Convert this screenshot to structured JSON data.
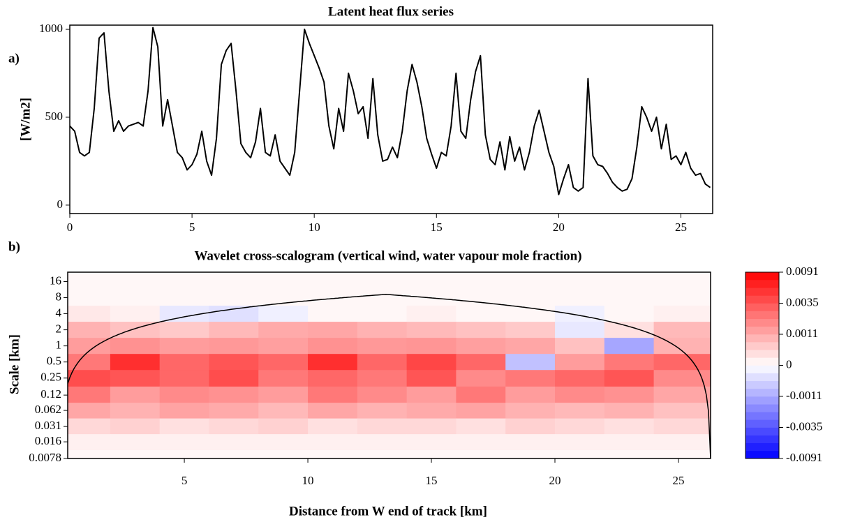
{
  "chart_data": [
    {
      "type": "line",
      "title": "Latent heat flux series",
      "panel_label": "a)",
      "ylabel": "[W/m2]",
      "color": "#000000",
      "xlim": [
        0,
        26.3
      ],
      "ylim": [
        -48,
        1024
      ],
      "xticks": [
        0,
        5,
        10,
        15,
        20,
        25
      ],
      "yticks": [
        0,
        500,
        1000
      ],
      "grid": false,
      "x": [
        0,
        0.2,
        0.4,
        0.6,
        0.8,
        1,
        1.2,
        1.4,
        1.6,
        1.8,
        2,
        2.2,
        2.4,
        2.6,
        2.8,
        3,
        3.2,
        3.4,
        3.6,
        3.8,
        4,
        4.2,
        4.4,
        4.6,
        4.8,
        5,
        5.2,
        5.4,
        5.6,
        5.8,
        6,
        6.2,
        6.4,
        6.6,
        6.8,
        7,
        7.2,
        7.4,
        7.6,
        7.8,
        8,
        8.2,
        8.4,
        8.6,
        8.8,
        9,
        9.2,
        9.4,
        9.6,
        9.8,
        10,
        10.2,
        10.4,
        10.6,
        10.8,
        11,
        11.2,
        11.4,
        11.6,
        11.8,
        12,
        12.2,
        12.4,
        12.6,
        12.8,
        13,
        13.2,
        13.4,
        13.6,
        13.8,
        14,
        14.2,
        14.4,
        14.6,
        14.8,
        15,
        15.2,
        15.4,
        15.6,
        15.8,
        16,
        16.2,
        16.4,
        16.6,
        16.8,
        17,
        17.2,
        17.4,
        17.6,
        17.8,
        18,
        18.2,
        18.4,
        18.6,
        18.8,
        19,
        19.2,
        19.4,
        19.6,
        19.8,
        20,
        20.2,
        20.4,
        20.6,
        20.8,
        21,
        21.2,
        21.4,
        21.6,
        21.8,
        22,
        22.2,
        22.4,
        22.6,
        22.8,
        23,
        23.2,
        23.4,
        23.6,
        23.8,
        24,
        24.2,
        24.4,
        24.6,
        24.8,
        25,
        25.2,
        25.4,
        25.6,
        25.8,
        26,
        26.2
      ],
      "values": [
        450,
        420,
        300,
        280,
        300,
        550,
        950,
        980,
        650,
        420,
        480,
        420,
        450,
        460,
        470,
        450,
        650,
        1010,
        900,
        450,
        600,
        450,
        300,
        270,
        200,
        230,
        290,
        420,
        250,
        170,
        380,
        800,
        880,
        920,
        650,
        350,
        300,
        270,
        360,
        550,
        300,
        280,
        400,
        250,
        210,
        170,
        300,
        650,
        1000,
        920,
        850,
        780,
        700,
        450,
        320,
        550,
        420,
        750,
        650,
        520,
        560,
        380,
        720,
        400,
        250,
        260,
        330,
        270,
        420,
        650,
        800,
        700,
        560,
        380,
        290,
        210,
        300,
        280,
        450,
        750,
        420,
        380,
        600,
        760,
        850,
        400,
        260,
        230,
        360,
        200,
        390,
        250,
        330,
        200,
        300,
        450,
        540,
        420,
        300,
        220,
        60,
        150,
        230,
        100,
        80,
        100,
        720,
        280,
        230,
        220,
        180,
        130,
        100,
        80,
        90,
        150,
        330,
        560,
        500,
        420,
        500,
        320,
        460,
        260,
        280,
        230,
        300,
        210,
        170,
        180,
        120,
        100
      ]
    },
    {
      "type": "heatmap",
      "title": "Wavelet cross-scalogram (vertical wind, water vapour mole fraction)",
      "panel_label": "b)",
      "ylabel": "Scale [km]",
      "xlabel": "Distance from W end of track [km]",
      "ylog": true,
      "xlim": [
        0.28,
        26.3
      ],
      "ylim": [
        0.0078,
        24
      ],
      "xticks": [
        5,
        10,
        15,
        20,
        25
      ],
      "yticks": [
        16,
        8,
        4,
        2,
        1,
        0.5,
        0.25,
        0.12,
        0.062,
        0.031,
        0.016,
        0.0078
      ],
      "colormap": [
        "#0000ff",
        "#ffffff",
        "#ff0000"
      ],
      "colorbar_ticks": [
        0.0091,
        0.0035,
        0.0011,
        0,
        -0.0011,
        -0.0035,
        -0.0091
      ],
      "x": [
        1,
        3,
        5,
        7,
        9,
        11,
        13,
        15,
        17,
        19,
        21,
        23,
        25
      ],
      "y": [
        16,
        8,
        4,
        2,
        1,
        0.5,
        0.25,
        0.12,
        0.062,
        0.031,
        0.016,
        0.0078
      ],
      "z": [
        [
          0.0001,
          0.0001,
          0.0001,
          0.0001,
          0.0001,
          0.0001,
          0.0001,
          0.0001,
          0.0001,
          0.0001,
          0.0001,
          0.0001,
          0.0001
        ],
        [
          0.0001,
          0.0001,
          0.0001,
          0.0001,
          0.0001,
          0.0001,
          0.0001,
          0.0001,
          0.0001,
          0.0001,
          0.0001,
          0.0001,
          0.0001
        ],
        [
          0.0003,
          0.0002,
          -0.0003,
          -0.0004,
          -0.0002,
          0.0001,
          0.0001,
          0.0002,
          0.0001,
          0.0001,
          -0.0002,
          0.0001,
          0.0002
        ],
        [
          0.001,
          0.0008,
          0.0007,
          0.0009,
          0.0011,
          0.0012,
          0.001,
          0.0009,
          0.0008,
          0.0007,
          -0.0003,
          0.0004,
          0.0009
        ],
        [
          0.0015,
          0.0018,
          0.0015,
          0.0016,
          0.0014,
          0.0018,
          0.0016,
          0.0017,
          0.0014,
          0.0012,
          0.0008,
          -0.0012,
          0.001
        ],
        [
          0.0025,
          0.006,
          0.003,
          0.0035,
          0.003,
          0.006,
          0.003,
          0.0045,
          0.003,
          -0.0008,
          0.0015,
          0.0025,
          0.003
        ],
        [
          0.004,
          0.0035,
          0.003,
          0.004,
          0.0025,
          0.003,
          0.0025,
          0.0035,
          0.002,
          0.0025,
          0.003,
          0.0035,
          0.002
        ],
        [
          0.0025,
          0.0015,
          0.002,
          0.0018,
          0.0015,
          0.0025,
          0.002,
          0.0015,
          0.0025,
          0.0015,
          0.002,
          0.0018,
          0.0012
        ],
        [
          0.0012,
          0.001,
          0.0013,
          0.0011,
          0.0009,
          0.0012,
          0.001,
          0.0011,
          0.0013,
          0.001,
          0.0009,
          0.001,
          0.0008
        ],
        [
          0.0005,
          0.0006,
          0.0004,
          0.0005,
          0.0006,
          0.0004,
          0.0005,
          0.0005,
          0.0004,
          0.0006,
          0.0005,
          0.0004,
          0.0005
        ],
        [
          0.0002,
          0.0002,
          0.0002,
          0.0002,
          0.0002,
          0.0002,
          0.0002,
          0.0002,
          0.0002,
          0.0002,
          0.0002,
          0.0002,
          0.0002
        ],
        [
          0.0001,
          0.0001,
          0.0001,
          0.0001,
          0.0001,
          0.0001,
          0.0001,
          0.0001,
          0.0001,
          0.0001,
          0.0001,
          0.0001,
          0.0001
        ]
      ]
    }
  ]
}
